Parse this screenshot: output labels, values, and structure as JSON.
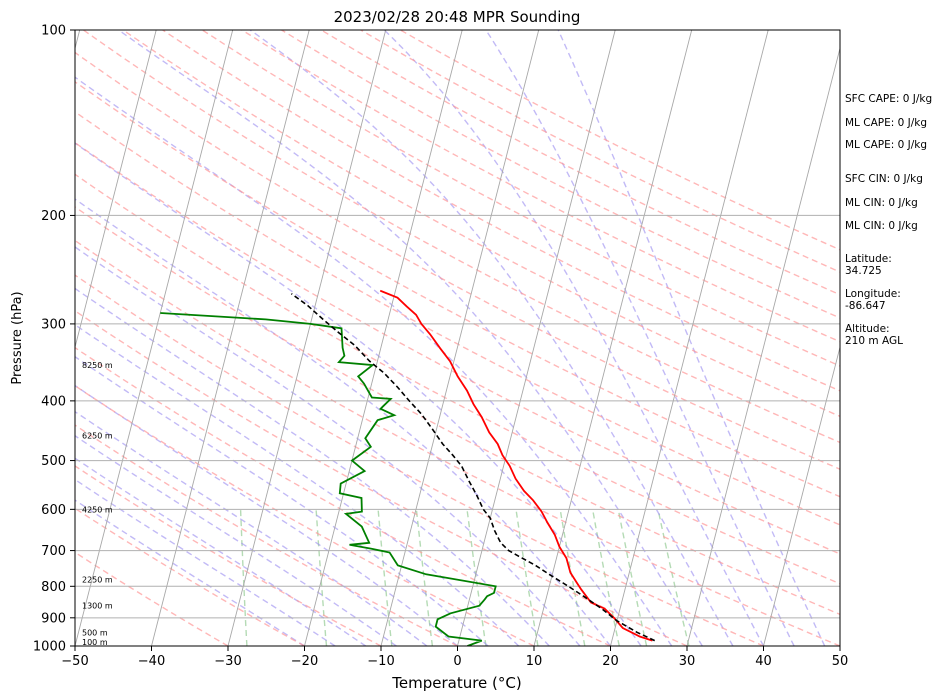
{
  "chart_data": {
    "type": "line",
    "title": "2023/02/28 20:48 MPR Sounding",
    "xlabel": "Temperature (°C)",
    "ylabel": "Pressure (hPa)",
    "xlim": [
      -50,
      50
    ],
    "ylim": [
      1000,
      100
    ],
    "y_scale": "log",
    "x_ticks": [
      -50,
      -40,
      -30,
      -20,
      -10,
      0,
      10,
      20,
      30,
      40,
      50
    ],
    "y_tick_labels": [
      "100",
      "200",
      "300",
      "400",
      "500",
      "600",
      "700",
      "800",
      "900",
      "1000"
    ],
    "y_ticks": [
      100,
      200,
      300,
      400,
      500,
      600,
      700,
      800,
      900,
      1000
    ],
    "grid": true,
    "colors": {
      "temperature": "#ff0000",
      "dewpoint": "#008000",
      "parcel": "#000000",
      "isotherm": "#999999",
      "dry_adiabat": "#ff9999",
      "moist_adiabat": "#9a8cf0",
      "mixing_ratio": "#9ccf9c"
    },
    "series": [
      {
        "x": [
          25.3,
          23.5,
          21,
          19.5,
          18,
          16,
          14.3,
          13.5,
          12.3,
          11.3,
          10,
          9,
          7.6,
          6.5,
          5,
          3.5,
          2,
          0.8,
          -0.5,
          -1.5,
          -3,
          -4.5,
          -6,
          -7.3,
          -9,
          -10.5,
          -12.3,
          -14,
          -15.5,
          -16.5,
          -18,
          -19.5,
          -22
        ],
        "y": [
          980,
          965,
          935,
          900,
          870,
          850,
          810,
          790,
          760,
          720,
          690,
          660,
          630,
          605,
          580,
          560,
          535,
          510,
          490,
          470,
          450,
          425,
          405,
          385,
          365,
          345,
          328,
          312,
          300,
          290,
          281,
          272,
          265
        ]
      },
      {
        "x": [
          1.3,
          3,
          -1.5,
          -3.5,
          -3.5,
          -2,
          1.5,
          2,
          2.2,
          3,
          3,
          -6.5,
          -10.5,
          -12,
          -14.5,
          -17.5,
          -15,
          -16.5,
          -19,
          -17,
          -17.5,
          -20.5,
          -20.7,
          -18,
          -20,
          -18,
          -19,
          -18,
          -16,
          -18,
          -17,
          -19.5,
          -21,
          -22,
          -20.5,
          -25,
          -24.5,
          -25,
          -25.8,
          -30,
          -36,
          -50
        ],
        "y": [
          1000,
          980,
          965,
          930,
          905,
          885,
          860,
          840,
          830,
          820,
          800,
          765,
          740,
          705,
          695,
          685,
          680,
          640,
          610,
          605,
          575,
          565,
          545,
          520,
          500,
          475,
          460,
          430,
          422,
          412,
          397,
          395,
          375,
          365,
          350,
          346,
          338,
          328,
          305,
          300,
          295,
          288
        ]
      },
      {
        "x": [
          25.6,
          23,
          20,
          17.6,
          14.8,
          12.5,
          10,
          7.5,
          5.5,
          3.5,
          2.2,
          1,
          0,
          -1.2,
          -2.5,
          -4,
          -5.5,
          -7,
          -8.7,
          -10.5,
          -12.5,
          -14.5,
          -16.5,
          -18.8,
          -21,
          -23.5,
          -26,
          -28.5,
          -31,
          -33.5
        ],
        "y": [
          980,
          950,
          910,
          870,
          830,
          800,
          770,
          740,
          720,
          700,
          680,
          650,
          620,
          600,
          570,
          540,
          510,
          490,
          470,
          445,
          420,
          400,
          380,
          360,
          345,
          325,
          310,
          295,
          280,
          268
        ]
      }
    ],
    "height_labels": [
      "8250 m",
      "6250 m",
      "4250 m",
      "2250 m",
      "1300 m",
      "500 m",
      "100 m"
    ],
    "height_label_pressures": [
      350,
      455,
      600,
      780,
      860,
      950,
      985
    ],
    "indices": {
      "sfc_cape": "SFC CAPE: 0 J/kg",
      "ml_cape_1": "ML CAPE: 0 J/kg",
      "ml_cape_2": "ML CAPE: 0 J/kg",
      "sfc_cin": "SFC CIN: 0 J/kg",
      "ml_cin_1": "ML CIN: 0 J/kg",
      "ml_cin_2": "ML CIN: 0 J/kg",
      "latitude_label": "Latitude:",
      "latitude_value": "34.725",
      "longitude_label": "Longitude:",
      "longitude_value": "-86.647",
      "altitude_label": "Altitude:",
      "altitude_value": "210 m AGL"
    }
  }
}
